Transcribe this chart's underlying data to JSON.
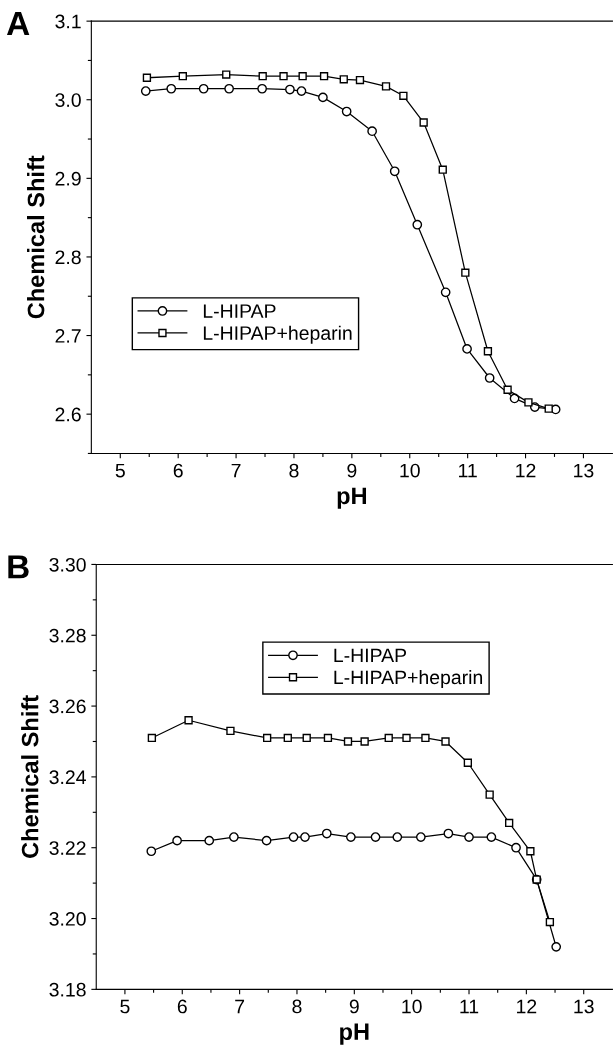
{
  "chart_data": [
    {
      "type": "line",
      "title": "A",
      "xlabel": "pH",
      "ylabel": "Chemical Shift",
      "xlim": [
        4.5,
        13.5
      ],
      "ylim": [
        2.55,
        3.1
      ],
      "xticks": [
        5,
        {
          "value": 5.5,
          "label": null
        },
        6,
        {
          "value": 6.5,
          "label": null
        },
        7,
        {
          "value": 7.5,
          "label": null
        },
        8,
        {
          "value": 8.5,
          "label": null
        },
        9,
        {
          "value": 9.5,
          "label": null
        },
        10,
        {
          "value": 10.5,
          "label": null
        },
        11,
        {
          "value": 11.5,
          "label": null
        },
        12,
        {
          "value": 12.5,
          "label": null
        },
        13
      ],
      "yticks": [
        {
          "value": 2.55,
          "label": null
        },
        {
          "value": 2.6,
          "label": "2.6"
        },
        {
          "value": 2.65,
          "label": null
        },
        {
          "value": 2.7,
          "label": "2.7"
        },
        {
          "value": 2.75,
          "label": null
        },
        {
          "value": 2.8,
          "label": "2.8"
        },
        {
          "value": 2.85,
          "label": null
        },
        {
          "value": 2.9,
          "label": "2.9"
        },
        {
          "value": 2.95,
          "label": null
        },
        {
          "value": 3.0,
          "label": "3.0"
        },
        {
          "value": 3.05,
          "label": null
        },
        {
          "value": 3.1,
          "label": "3.1"
        }
      ],
      "grid": false,
      "legend": "center left",
      "line_style": "solid",
      "series": [
        {
          "name": "L-HIPAP",
          "color": "#000000",
          "marker": "circle",
          "x": [
            5.44,
            5.88,
            6.44,
            6.88,
            7.45,
            7.93,
            8.13,
            8.5,
            8.91,
            9.35,
            9.74,
            10.13,
            10.62,
            10.99,
            11.38,
            11.81,
            12.16,
            12.52
          ],
          "values": [
            3.011,
            3.014,
            3.014,
            3.014,
            3.014,
            3.013,
            3.011,
            3.003,
            2.985,
            2.96,
            2.909,
            2.841,
            2.755,
            2.683,
            2.646,
            2.62,
            2.609,
            2.606
          ]
        },
        {
          "name": "L-HIPAP+heparin",
          "color": "#000000",
          "marker": "square",
          "x": [
            5.46,
            6.08,
            6.83,
            7.46,
            7.82,
            8.15,
            8.52,
            8.86,
            9.14,
            9.59,
            9.89,
            10.24,
            10.57,
            10.96,
            11.35,
            11.69,
            12.05,
            12.4
          ],
          "values": [
            3.028,
            3.03,
            3.032,
            3.03,
            3.03,
            3.03,
            3.03,
            3.026,
            3.025,
            3.017,
            3.005,
            2.971,
            2.911,
            2.78,
            2.68,
            2.631,
            2.615,
            2.607
          ]
        }
      ]
    },
    {
      "type": "line",
      "title": "B",
      "xlabel": "pH",
      "ylabel": "Chemical Shift",
      "xlim": [
        4.5,
        13.5
      ],
      "ylim": [
        3.18,
        3.3
      ],
      "xticks": [
        5,
        {
          "value": 5.5,
          "label": null
        },
        6,
        {
          "value": 6.5,
          "label": null
        },
        7,
        {
          "value": 7.5,
          "label": null
        },
        8,
        {
          "value": 8.5,
          "label": null
        },
        9,
        {
          "value": 9.5,
          "label": null
        },
        10,
        {
          "value": 10.5,
          "label": null
        },
        11,
        {
          "value": 11.5,
          "label": null
        },
        12,
        {
          "value": 12.5,
          "label": null
        },
        13
      ],
      "yticks": [
        {
          "value": 3.18,
          "label": "3.18"
        },
        {
          "value": 3.19,
          "label": null
        },
        {
          "value": 3.2,
          "label": "3.20"
        },
        {
          "value": 3.21,
          "label": null
        },
        {
          "value": 3.22,
          "label": "3.22"
        },
        {
          "value": 3.23,
          "label": null
        },
        {
          "value": 3.24,
          "label": "3.24"
        },
        {
          "value": 3.25,
          "label": null
        },
        {
          "value": 3.26,
          "label": "3.26"
        },
        {
          "value": 3.27,
          "label": null
        },
        {
          "value": 3.28,
          "label": "3.28"
        },
        {
          "value": 3.29,
          "label": null
        },
        {
          "value": 3.3,
          "label": "3.30"
        }
      ],
      "grid": false,
      "legend": "top right",
      "line_style": "solid",
      "series": [
        {
          "name": "L-HIPAP",
          "color": "#000000",
          "marker": "circle",
          "x": [
            5.46,
            5.91,
            6.47,
            6.9,
            7.47,
            7.94,
            8.14,
            8.52,
            8.94,
            9.37,
            9.75,
            10.16,
            10.64,
            11.0,
            11.39,
            11.82,
            12.18,
            12.52
          ],
          "values": [
            3.219,
            3.222,
            3.222,
            3.223,
            3.222,
            3.223,
            3.223,
            3.224,
            3.223,
            3.223,
            3.223,
            3.223,
            3.224,
            3.223,
            3.223,
            3.22,
            3.211,
            3.192
          ]
        },
        {
          "name": "L-HIPAP+heparin",
          "color": "#000000",
          "marker": "square",
          "x": [
            5.47,
            6.11,
            6.84,
            7.48,
            7.84,
            8.17,
            8.54,
            8.89,
            9.18,
            9.6,
            9.91,
            10.24,
            10.59,
            10.98,
            11.36,
            11.7,
            12.07,
            12.18,
            12.41
          ],
          "values": [
            3.251,
            3.256,
            3.253,
            3.251,
            3.251,
            3.251,
            3.251,
            3.25,
            3.25,
            3.251,
            3.251,
            3.251,
            3.25,
            3.244,
            3.235,
            3.227,
            3.219,
            3.211,
            3.199
          ]
        }
      ]
    }
  ]
}
